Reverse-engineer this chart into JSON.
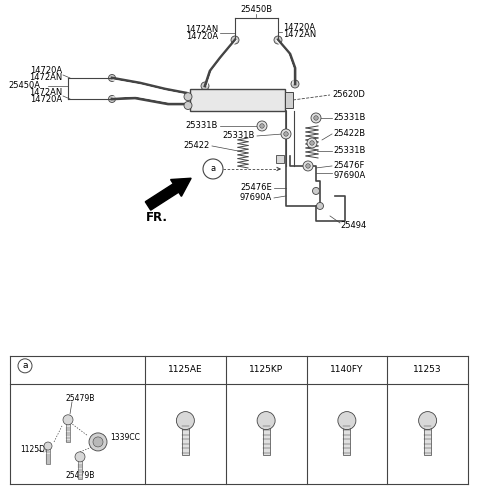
{
  "bg_color": "#ffffff",
  "line_color": "#444444",
  "text_color": "#000000",
  "font_size": 6.0,
  "table_col_labels": [
    "1125AE",
    "1125KP",
    "1140FY",
    "11253"
  ]
}
